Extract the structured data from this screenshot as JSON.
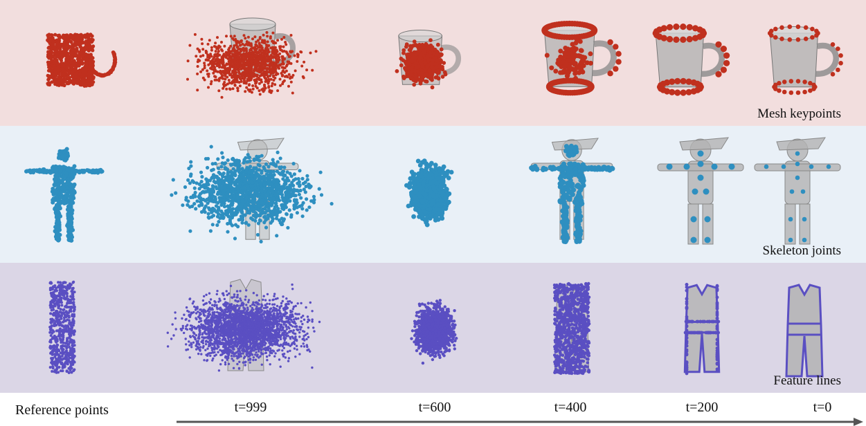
{
  "rows": [
    {
      "label": "Mesh keypoints",
      "background": "#f2dede",
      "point_color": "#c0301e"
    },
    {
      "label": "Skeleton joints",
      "background": "#e9f0f7",
      "point_color": "#2e8fc0"
    },
    {
      "label": "Feature lines",
      "background": "#dbd6e6",
      "point_color": "#5a4fc2"
    }
  ],
  "bottom": {
    "reference_label": "Reference points",
    "timesteps": [
      "t=999",
      "t=600",
      "t=400",
      "t=200",
      "t=0"
    ]
  },
  "mesh_color": "#b3b3b3"
}
